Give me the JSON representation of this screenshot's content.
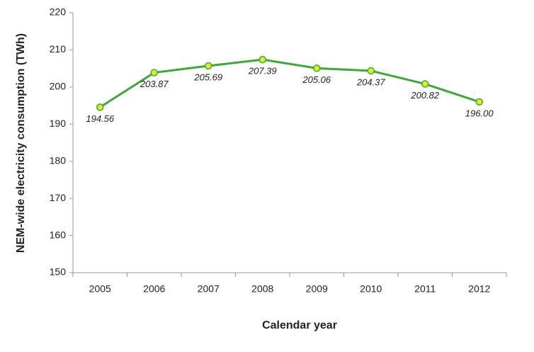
{
  "chart_data": {
    "type": "line",
    "xlabel": "Calendar year",
    "ylabel": "NEM-wide electricity consumption (TWh)",
    "categories": [
      "2005",
      "2006",
      "2007",
      "2008",
      "2009",
      "2010",
      "2011",
      "2012"
    ],
    "series": [
      {
        "name": "NEM-wide electricity consumption",
        "color": "#3aaa35",
        "values": [
          194.56,
          203.87,
          205.69,
          207.39,
          205.06,
          204.37,
          200.82,
          196.0
        ],
        "value_labels": [
          "194.56",
          "203.87",
          "205.69",
          "207.39",
          "205.06",
          "204.37",
          "200.82",
          "196.00"
        ]
      }
    ],
    "marker_color": "#e4e829",
    "ylim": [
      150,
      220
    ],
    "yticks": [
      150,
      160,
      170,
      180,
      190,
      200,
      210,
      220
    ],
    "grid": false
  }
}
